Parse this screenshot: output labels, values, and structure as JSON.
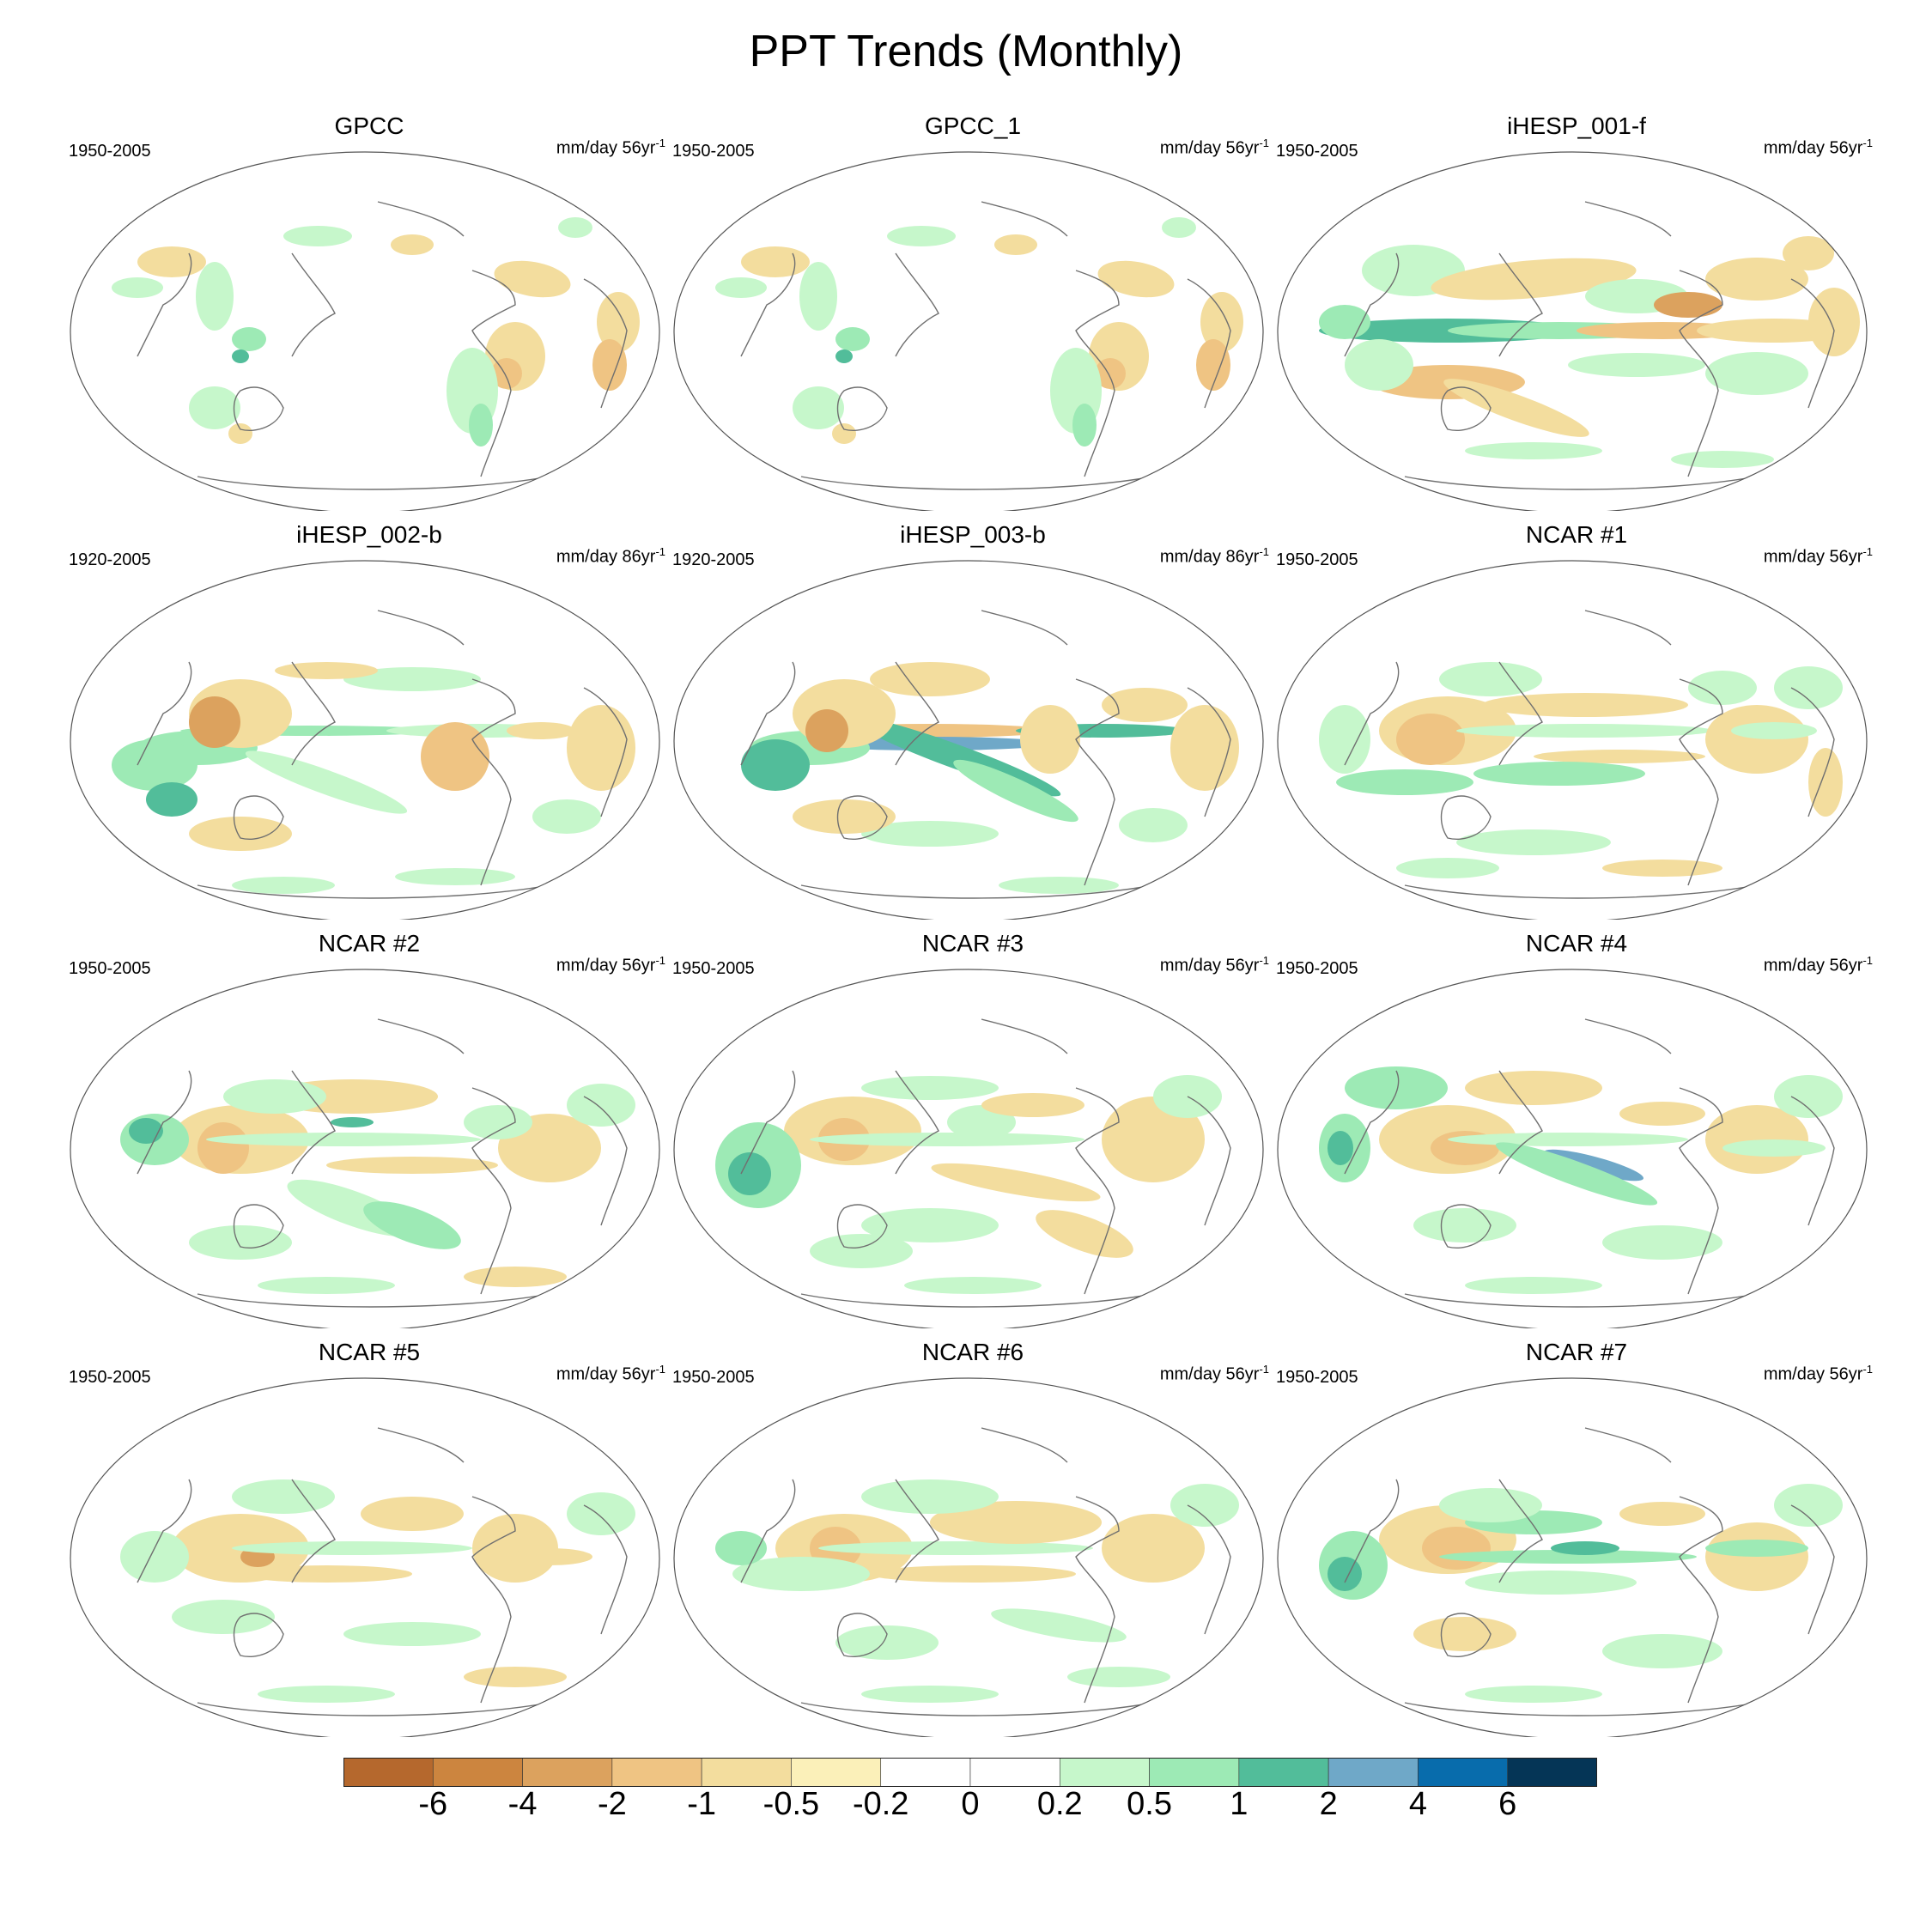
{
  "title": "PPT Trends (Monthly)",
  "panels": [
    {
      "name": "GPCC",
      "period": "1950-2005",
      "units": "mm/day 56yr",
      "exp": "-1",
      "pattern": "gpcc"
    },
    {
      "name": "GPCC_1",
      "period": "1950-2005",
      "units": "mm/day 56yr",
      "exp": "-1",
      "pattern": "gpcc"
    },
    {
      "name": "iHESP_001-f",
      "period": "1950-2005",
      "units": "mm/day 56yr",
      "exp": "-1",
      "pattern": "ihesp1"
    },
    {
      "name": "iHESP_002-b",
      "period": "1920-2005",
      "units": "mm/day 86yr",
      "exp": "-1",
      "pattern": "ihesp2"
    },
    {
      "name": "iHESP_003-b",
      "period": "1920-2005",
      "units": "mm/day 86yr",
      "exp": "-1",
      "pattern": "ihesp3"
    },
    {
      "name": "NCAR #1",
      "period": "1950-2005",
      "units": "mm/day 56yr",
      "exp": "-1",
      "pattern": "ncar1"
    },
    {
      "name": "NCAR #2",
      "period": "1950-2005",
      "units": "mm/day 56yr",
      "exp": "-1",
      "pattern": "ncar2"
    },
    {
      "name": "NCAR #3",
      "period": "1950-2005",
      "units": "mm/day 56yr",
      "exp": "-1",
      "pattern": "ncar3"
    },
    {
      "name": "NCAR #4",
      "period": "1950-2005",
      "units": "mm/day 56yr",
      "exp": "-1",
      "pattern": "ncar4"
    },
    {
      "name": "NCAR #5",
      "period": "1950-2005",
      "units": "mm/day 56yr",
      "exp": "-1",
      "pattern": "ncar5"
    },
    {
      "name": "NCAR #6",
      "period": "1950-2005",
      "units": "mm/day 56yr",
      "exp": "-1",
      "pattern": "ncar6"
    },
    {
      "name": "NCAR #7",
      "period": "1950-2005",
      "units": "mm/day 56yr",
      "exp": "-1",
      "pattern": "ncar7"
    }
  ],
  "colorbar": {
    "colors": [
      "#b5682d",
      "#cc853f",
      "#dca25e",
      "#efc483",
      "#f3dd9e",
      "#fbf0b9",
      "#ffffff",
      "#ffffff",
      "#c6f7cb",
      "#9deab5",
      "#52bd9a",
      "#6fa8c8",
      "#086cac",
      "#053556"
    ],
    "labels": [
      "-6",
      "-4",
      "-2",
      "-1",
      "-0.5",
      "-0.2",
      "0",
      "0.2",
      "0.5",
      "1",
      "2",
      "4",
      "6"
    ]
  }
}
